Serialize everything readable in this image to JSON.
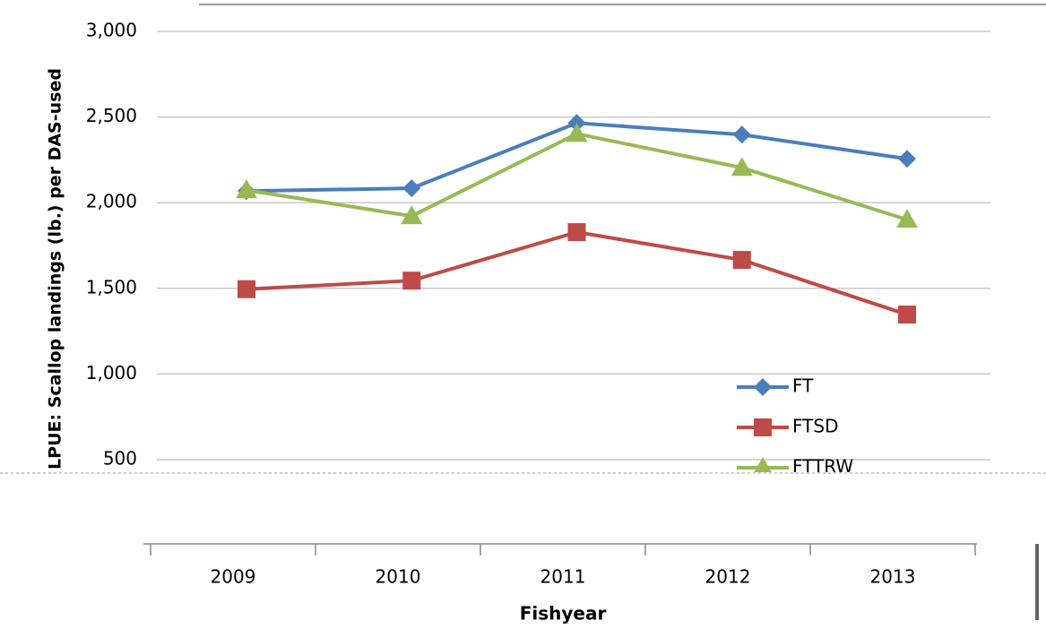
{
  "chart_data": {
    "type": "line",
    "y_label": "LPUE: Scallop landings (lb.) per DAS-used",
    "x_label": "Fishyear",
    "categories": [
      "2009",
      "2010",
      "2011",
      "2012",
      "2013"
    ],
    "series": [
      {
        "name": "FT",
        "color": "#4a7ebb",
        "marker": "diamond",
        "values": [
          2068,
          2084,
          2465,
          2397,
          2256
        ]
      },
      {
        "name": "FTSD",
        "color": "#be4b48",
        "marker": "square",
        "values": [
          1495,
          1545,
          1828,
          1666,
          1347
        ]
      },
      {
        "name": "FTTRW",
        "color": "#98b954",
        "marker": "triangle",
        "values": [
          2073,
          1922,
          2402,
          2204,
          1901
        ]
      }
    ],
    "ylim": [
      500,
      3000
    ],
    "yticks": [
      {
        "value": 500,
        "label": "500"
      },
      {
        "value": 1000,
        "label": "1,000"
      },
      {
        "value": 1500,
        "label": "1,500"
      },
      {
        "value": 2000,
        "label": "2,000"
      },
      {
        "value": 2500,
        "label": "2,500"
      },
      {
        "value": 3000,
        "label": "3,000"
      }
    ],
    "grid": true,
    "legend": "lower right"
  }
}
